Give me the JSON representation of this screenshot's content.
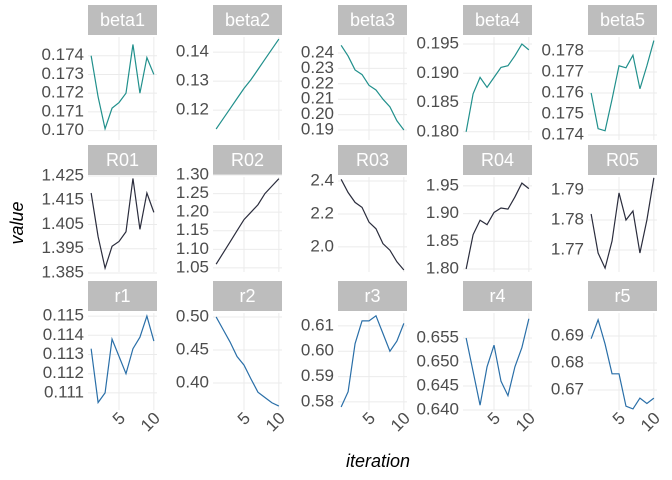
{
  "ylabel": "value",
  "xlabel": "iteration",
  "chart_data": [
    {
      "type": "line",
      "title": "beta1",
      "color": "#21908c",
      "x": [
        1,
        2,
        3,
        4,
        5,
        6,
        7,
        8,
        9,
        10
      ],
      "values": [
        0.174,
        0.1718,
        0.1701,
        0.1712,
        0.1715,
        0.172,
        0.1746,
        0.172,
        0.1739,
        0.173
      ],
      "xlim": [
        0.55,
        10.45
      ],
      "xticks": [
        5,
        10
      ],
      "ylim": [
        0.1695,
        0.175
      ],
      "yticks": [
        {
          "value": 0.17,
          "label": "0.170"
        },
        0.171,
        0.172,
        0.173,
        0.174
      ]
    },
    {
      "type": "line",
      "title": "beta2",
      "color": "#21908c",
      "x": [
        1,
        2,
        3,
        4,
        5,
        6,
        7,
        8,
        9,
        10
      ],
      "values": [
        0.1135,
        0.117,
        0.1205,
        0.124,
        0.1275,
        0.1305,
        0.134,
        0.1375,
        0.141,
        0.1445
      ],
      "xlim": [
        0.55,
        10.45
      ],
      "xticks": [
        5,
        10
      ],
      "ylim": [
        0.1097,
        0.1452
      ],
      "yticks": [
        0.12,
        0.13,
        0.14
      ]
    },
    {
      "type": "line",
      "title": "beta3",
      "color": "#21908c",
      "x": [
        1,
        2,
        3,
        4,
        5,
        6,
        7,
        8,
        9,
        10
      ],
      "values": [
        0.245,
        0.238,
        0.229,
        0.226,
        0.219,
        0.216,
        0.21,
        0.205,
        0.196,
        0.19
      ],
      "xlim": [
        0.55,
        10.45
      ],
      "xticks": [
        5,
        10
      ],
      "ylim": [
        0.1835,
        0.2504
      ],
      "yticks": [
        0.19,
        {
          "value": 0.2,
          "label": "0.20"
        },
        0.21,
        0.22,
        0.23,
        0.24
      ]
    },
    {
      "type": "line",
      "title": "beta4",
      "color": "#21908c",
      "x": [
        1,
        2,
        3,
        4,
        5,
        6,
        7,
        8,
        9,
        10
      ],
      "values": [
        0.18,
        0.1865,
        0.1893,
        0.1876,
        0.1893,
        0.191,
        0.1913,
        0.193,
        0.195,
        0.194
      ],
      "xlim": [
        0.55,
        10.45
      ],
      "xticks": [
        5,
        10
      ],
      "ylim": [
        0.1786,
        0.1962
      ],
      "yticks": [
        {
          "value": 0.18,
          "label": "0.180"
        },
        0.185,
        {
          "value": 0.19,
          "label": "0.190"
        },
        0.195
      ]
    },
    {
      "type": "line",
      "title": "beta5",
      "color": "#21908c",
      "x": [
        1,
        2,
        3,
        4,
        5,
        6,
        7,
        8,
        9,
        10
      ],
      "values": [
        0.176,
        0.1743,
        0.1742,
        0.1757,
        0.1773,
        0.1772,
        0.1778,
        0.1762,
        0.1773,
        0.1785
      ],
      "xlim": [
        0.55,
        10.45
      ],
      "xticks": [
        5,
        10
      ],
      "ylim": [
        0.17376,
        0.17867
      ],
      "yticks": [
        0.174,
        0.175,
        0.176,
        0.177,
        0.178
      ]
    },
    {
      "type": "line",
      "title": "R01",
      "color": "#2b2d3d",
      "x": [
        1,
        2,
        3,
        4,
        5,
        6,
        7,
        8,
        9,
        10
      ],
      "values": [
        1.418,
        1.4,
        1.387,
        1.396,
        1.398,
        1.402,
        1.424,
        1.403,
        1.418,
        1.41
      ],
      "xlim": [
        0.55,
        10.45
      ],
      "xticks": [
        5,
        10
      ],
      "ylim": [
        1.3854,
        1.4246
      ],
      "yticks": [
        1.385,
        1.395,
        1.405,
        1.415,
        1.425
      ]
    },
    {
      "type": "line",
      "title": "R02",
      "color": "#2b2d3d",
      "x": [
        1,
        2,
        3,
        4,
        5,
        6,
        7,
        8,
        9,
        10
      ],
      "values": [
        1.06,
        1.09,
        1.12,
        1.15,
        1.18,
        1.2,
        1.22,
        1.25,
        1.27,
        1.29
      ],
      "xlim": [
        0.55,
        10.45
      ],
      "xticks": [
        5,
        10
      ],
      "ylim": [
        1.039,
        1.2946
      ],
      "yticks": [
        1.05,
        {
          "value": 1.1,
          "label": "1.10"
        },
        1.15,
        {
          "value": 1.2,
          "label": "1.20"
        },
        1.25,
        {
          "value": 1.3,
          "label": "1.30"
        }
      ]
    },
    {
      "type": "line",
      "title": "R03",
      "color": "#2b2d3d",
      "x": [
        1,
        2,
        3,
        4,
        5,
        6,
        7,
        8,
        9,
        10
      ],
      "values": [
        2.41,
        2.33,
        2.27,
        2.24,
        2.15,
        2.11,
        2.02,
        1.98,
        1.91,
        1.86
      ],
      "xlim": [
        0.55,
        10.45
      ],
      "xticks": [
        5,
        10
      ],
      "ylim": [
        1.848,
        2.424
      ],
      "yticks": [
        {
          "value": 2,
          "label": "2.0"
        },
        2.2,
        2.4
      ]
    },
    {
      "type": "line",
      "title": "R04",
      "color": "#2b2d3d",
      "x": [
        1,
        2,
        3,
        4,
        5,
        6,
        7,
        8,
        9,
        10
      ],
      "values": [
        1.8,
        1.862,
        1.888,
        1.88,
        1.902,
        1.91,
        1.908,
        1.93,
        1.955,
        1.945
      ],
      "xlim": [
        0.55,
        10.45
      ],
      "xticks": [
        5,
        10
      ],
      "ylim": [
        1.7946,
        1.966
      ],
      "yticks": [
        {
          "value": 1.8,
          "label": "1.80"
        },
        1.85,
        {
          "value": 1.9,
          "label": "1.90"
        },
        1.95
      ]
    },
    {
      "type": "line",
      "title": "R05",
      "color": "#2b2d3d",
      "x": [
        1,
        2,
        3,
        4,
        5,
        6,
        7,
        8,
        9,
        10
      ],
      "values": [
        1.782,
        1.769,
        1.764,
        1.773,
        1.789,
        1.78,
        1.783,
        1.769,
        1.78,
        1.794
      ],
      "xlim": [
        0.55,
        10.45
      ],
      "xticks": [
        5,
        10
      ],
      "ylim": [
        1.7627,
        1.7943
      ],
      "yticks": [
        1.77,
        1.78,
        1.79
      ]
    },
    {
      "type": "line",
      "title": "r1",
      "color": "#2a6fa8",
      "x": [
        1,
        2,
        3,
        4,
        5,
        6,
        7,
        8,
        9,
        10
      ],
      "values": [
        0.1133,
        0.1105,
        0.111,
        0.1138,
        0.1129,
        0.112,
        0.1133,
        0.1139,
        0.115,
        0.1137
      ],
      "xlim": [
        0.55,
        10.45
      ],
      "xticks": [
        5,
        10
      ],
      "ylim": [
        0.11011,
        0.11516
      ],
      "yticks": [
        0.111,
        0.112,
        0.113,
        0.114,
        0.115
      ]
    },
    {
      "type": "line",
      "title": "r2",
      "color": "#2a6fa8",
      "x": [
        1,
        2,
        3,
        4,
        5,
        6,
        7,
        8,
        9,
        10
      ],
      "values": [
        0.5,
        0.481,
        0.462,
        0.44,
        0.427,
        0.406,
        0.386,
        0.378,
        0.37,
        0.365
      ],
      "xlim": [
        0.55,
        10.45
      ],
      "xticks": [
        5,
        10
      ],
      "ylim": [
        0.359,
        0.506
      ],
      "yticks": [
        {
          "value": 0.4,
          "label": "0.40"
        },
        0.45,
        {
          "value": 0.5,
          "label": "0.50"
        }
      ]
    },
    {
      "type": "line",
      "title": "r3",
      "color": "#2a6fa8",
      "x": [
        1,
        2,
        3,
        4,
        5,
        6,
        7,
        8,
        9,
        10
      ],
      "values": [
        0.578,
        0.584,
        0.603,
        0.612,
        0.612,
        0.614,
        0.607,
        0.6,
        0.604,
        0.611
      ],
      "xlim": [
        0.55,
        10.45
      ],
      "xticks": [
        5,
        10
      ],
      "ylim": [
        0.5768,
        0.6151
      ],
      "yticks": [
        0.58,
        0.59,
        {
          "value": 0.6,
          "label": "0.60"
        },
        0.61
      ]
    },
    {
      "type": "line",
      "title": "r4",
      "color": "#2a6fa8",
      "x": [
        1,
        2,
        3,
        4,
        5,
        6,
        7,
        8,
        9,
        10
      ],
      "values": [
        0.655,
        0.648,
        0.641,
        0.649,
        0.6535,
        0.646,
        0.643,
        0.649,
        0.653,
        0.659
      ],
      "xlim": [
        0.55,
        10.45
      ],
      "xticks": [
        5,
        10
      ],
      "ylim": [
        0.64,
        0.6602
      ],
      "yticks": [
        {
          "value": 0.64,
          "label": "0.640"
        },
        0.645,
        {
          "value": 0.65,
          "label": "0.650"
        },
        0.655
      ]
    },
    {
      "type": "line",
      "title": "r5",
      "color": "#2a6fa8",
      "x": [
        1,
        2,
        3,
        4,
        5,
        6,
        7,
        8,
        9,
        10
      ],
      "values": [
        0.689,
        0.696,
        0.687,
        0.676,
        0.676,
        0.664,
        0.663,
        0.667,
        0.665,
        0.667
      ],
      "xlim": [
        0.55,
        10.45
      ],
      "xticks": [
        5,
        10
      ],
      "ylim": [
        0.6626,
        0.6985
      ],
      "yticks": [
        0.67,
        0.68,
        0.69
      ]
    }
  ]
}
